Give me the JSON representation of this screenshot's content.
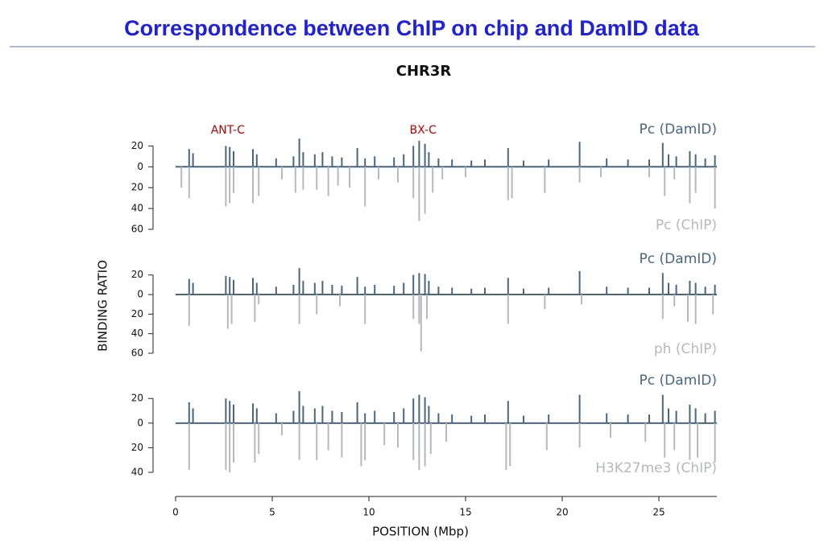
{
  "header": {
    "title": "Correspondence between ChIP on chip and DamID data"
  },
  "chart_data": [
    {
      "type": "bar",
      "title": "CHR3R",
      "annotations": [
        {
          "text": "ANT-C",
          "x": 2.7
        },
        {
          "text": "BX-C",
          "x": 12.8
        }
      ],
      "xlim": [
        0,
        28
      ],
      "ylim": [
        -60,
        28
      ],
      "yticks": [
        {
          "value": 20,
          "label": "20"
        },
        0,
        {
          "value": -20,
          "label": "20"
        },
        {
          "value": -40,
          "label": "40"
        },
        {
          "value": -60,
          "label": "60"
        }
      ],
      "series": [
        {
          "name": "Pc (DamID)",
          "color": "#4a6580",
          "x": [
            0.7,
            0.9,
            2.6,
            2.8,
            3.0,
            4.0,
            4.2,
            5.2,
            6.1,
            6.4,
            6.6,
            7.2,
            7.6,
            8.1,
            8.6,
            9.4,
            9.8,
            10.3,
            11.3,
            11.8,
            12.3,
            12.6,
            12.9,
            13.1,
            13.6,
            14.3,
            15.3,
            16.0,
            17.2,
            18.0,
            19.3,
            20.9,
            22.3,
            23.4,
            24.5,
            25.2,
            25.5,
            25.9,
            26.6,
            26.9,
            27.4,
            27.9
          ],
          "values": [
            17,
            13,
            20,
            19,
            15,
            17,
            12,
            8,
            10,
            27,
            14,
            12,
            14,
            10,
            9,
            18,
            8,
            10,
            9,
            12,
            20,
            25,
            22,
            14,
            8,
            7,
            6,
            7,
            18,
            6,
            7,
            24,
            8,
            7,
            7,
            23,
            12,
            10,
            15,
            12,
            8,
            11
          ]
        },
        {
          "name": "Pc (ChIP)",
          "color": "#b5b8bd",
          "x": [
            0.3,
            0.7,
            2.6,
            2.8,
            3.0,
            4.0,
            4.3,
            5.5,
            6.2,
            6.6,
            7.3,
            7.9,
            8.4,
            9.0,
            9.8,
            10.5,
            11.5,
            12.3,
            12.6,
            12.9,
            13.3,
            13.8,
            15.0,
            17.2,
            17.4,
            19.1,
            20.9,
            22.0,
            24.5,
            25.3,
            25.8,
            26.6,
            26.9,
            27.9
          ],
          "values": [
            -20,
            -30,
            -38,
            -35,
            -25,
            -35,
            -28,
            -12,
            -25,
            -22,
            -22,
            -28,
            -18,
            -20,
            -38,
            -12,
            -15,
            -30,
            -52,
            -45,
            -25,
            -12,
            -10,
            -32,
            -30,
            -25,
            -15,
            -10,
            -10,
            -28,
            -12,
            -35,
            -25,
            -40
          ]
        }
      ]
    },
    {
      "type": "bar",
      "ylabel": "BINDING RATIO",
      "xlim": [
        0,
        28
      ],
      "ylim": [
        -60,
        28
      ],
      "yticks": [
        {
          "value": 20,
          "label": "20"
        },
        0,
        {
          "value": -20,
          "label": "20"
        },
        {
          "value": -40,
          "label": "40"
        },
        {
          "value": -60,
          "label": "60"
        }
      ],
      "series": [
        {
          "name": "Pc (DamID)",
          "color": "#4a6580",
          "x": [
            0.7,
            0.9,
            2.6,
            2.8,
            3.0,
            4.0,
            4.2,
            5.2,
            6.1,
            6.4,
            6.6,
            7.2,
            7.6,
            8.1,
            8.6,
            9.4,
            9.8,
            10.3,
            11.3,
            11.8,
            12.3,
            12.6,
            12.9,
            13.1,
            13.6,
            14.3,
            15.3,
            16.0,
            17.2,
            18.0,
            19.3,
            20.9,
            22.3,
            23.4,
            24.5,
            25.2,
            25.5,
            25.9,
            26.6,
            26.9,
            27.4,
            27.9
          ],
          "values": [
            16,
            12,
            19,
            18,
            15,
            17,
            12,
            8,
            10,
            27,
            14,
            12,
            14,
            10,
            9,
            18,
            8,
            10,
            9,
            12,
            20,
            22,
            21,
            14,
            8,
            7,
            6,
            7,
            17,
            6,
            7,
            24,
            8,
            7,
            7,
            22,
            12,
            10,
            14,
            12,
            8,
            10
          ]
        },
        {
          "name": "ph (ChIP)",
          "color": "#b5b8bd",
          "x": [
            0.7,
            2.7,
            2.9,
            4.1,
            4.3,
            6.4,
            7.3,
            8.5,
            9.8,
            12.3,
            12.6,
            12.7,
            13.0,
            17.2,
            19.1,
            21.0,
            25.2,
            25.8,
            26.5,
            26.9,
            27.8
          ],
          "values": [
            -32,
            -35,
            -30,
            -28,
            -10,
            -30,
            -20,
            -12,
            -30,
            -25,
            -30,
            -58,
            -25,
            -30,
            -15,
            -10,
            -25,
            -12,
            -28,
            -30,
            -20
          ]
        }
      ]
    },
    {
      "type": "bar",
      "xlabel": "POSITION (Mbp)",
      "xlim": [
        0,
        28
      ],
      "xticks": [
        0,
        5,
        10,
        15,
        20,
        25
      ],
      "ylim": [
        -40,
        28
      ],
      "yticks": [
        {
          "value": 20,
          "label": "20"
        },
        0,
        {
          "value": -20,
          "label": "20"
        },
        {
          "value": -40,
          "label": "40"
        }
      ],
      "series": [
        {
          "name": "Pc (DamID)",
          "color": "#4a6580",
          "x": [
            0.7,
            0.9,
            2.6,
            2.8,
            3.0,
            4.0,
            4.2,
            5.2,
            6.1,
            6.4,
            6.6,
            7.2,
            7.6,
            8.1,
            8.6,
            9.4,
            9.8,
            10.3,
            11.3,
            11.8,
            12.3,
            12.6,
            12.9,
            13.1,
            13.6,
            14.3,
            15.3,
            16.0,
            17.2,
            18.0,
            19.3,
            20.9,
            22.3,
            23.4,
            24.5,
            25.2,
            25.5,
            25.9,
            26.6,
            26.9,
            27.4,
            27.9
          ],
          "values": [
            17,
            12,
            20,
            18,
            15,
            16,
            12,
            8,
            10,
            26,
            14,
            12,
            14,
            10,
            9,
            17,
            8,
            10,
            9,
            12,
            20,
            23,
            21,
            14,
            8,
            7,
            6,
            7,
            18,
            6,
            7,
            23,
            8,
            7,
            7,
            23,
            12,
            10,
            15,
            12,
            8,
            10
          ]
        },
        {
          "name": "H3K27me3 (ChIP)",
          "color": "#b5b8bd",
          "x": [
            0.7,
            2.6,
            2.8,
            3.0,
            4.1,
            4.3,
            5.5,
            6.4,
            7.3,
            7.9,
            8.6,
            9.6,
            9.8,
            10.8,
            11.5,
            12.3,
            12.6,
            12.9,
            13.2,
            14.0,
            17.1,
            17.3,
            19.2,
            20.9,
            22.5,
            24.3,
            25.3,
            25.8,
            26.6,
            27.0,
            27.9
          ],
          "values": [
            -38,
            -38,
            -40,
            -32,
            -32,
            -25,
            -10,
            -30,
            -30,
            -22,
            -28,
            -35,
            -30,
            -18,
            -20,
            -30,
            -38,
            -35,
            -25,
            -15,
            -38,
            -35,
            -22,
            -20,
            -12,
            -15,
            -28,
            -22,
            -30,
            -28,
            -32
          ]
        }
      ]
    }
  ]
}
